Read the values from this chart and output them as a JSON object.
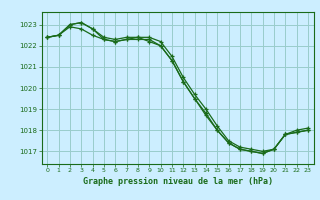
{
  "title": "Graphe pression niveau de la mer (hPa)",
  "background_color": "#cceeff",
  "grid_color": "#99cccc",
  "line_color": "#1a6b1a",
  "xlim": [
    -0.5,
    23.5
  ],
  "ylim": [
    1016.4,
    1023.6
  ],
  "yticks": [
    1017,
    1018,
    1019,
    1020,
    1021,
    1022,
    1023
  ],
  "xticks": [
    0,
    1,
    2,
    3,
    4,
    5,
    6,
    7,
    8,
    9,
    10,
    11,
    12,
    13,
    14,
    15,
    16,
    17,
    18,
    19,
    20,
    21,
    22,
    23
  ],
  "series": [
    [
      1022.4,
      1022.5,
      1023.0,
      1023.1,
      1022.8,
      1022.3,
      1022.2,
      1022.3,
      1022.3,
      1022.3,
      1022.0,
      1021.3,
      1020.3,
      1019.5,
      1018.8,
      1018.0,
      1017.4,
      1017.1,
      1017.0,
      1016.9,
      1017.1,
      1017.8,
      1017.9,
      1018.0
    ],
    [
      1022.4,
      1022.5,
      1023.0,
      1023.1,
      1022.8,
      1022.4,
      1022.3,
      1022.4,
      1022.4,
      1022.4,
      1022.2,
      1021.5,
      1020.5,
      1019.7,
      1019.0,
      1018.2,
      1017.5,
      1017.2,
      1017.1,
      1017.0,
      1017.1,
      1017.8,
      1018.0,
      1018.1
    ],
    [
      1022.4,
      1022.5,
      1022.9,
      1022.8,
      1022.5,
      1022.3,
      1022.2,
      1022.3,
      1022.4,
      1022.2,
      1022.0,
      1021.3,
      1020.3,
      1019.5,
      1018.7,
      1018.0,
      1017.4,
      1017.1,
      1017.0,
      1016.9,
      1017.1,
      1017.8,
      1017.9,
      1018.0
    ]
  ]
}
